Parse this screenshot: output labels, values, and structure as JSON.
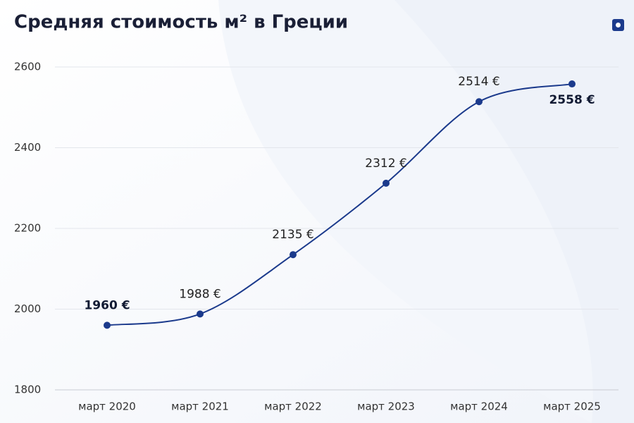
{
  "chart_data": {
    "type": "line",
    "title": "Средняя стоимость м² в Греции",
    "categories": [
      "март 2020",
      "март 2021",
      "март 2022",
      "март 2023",
      "март 2024",
      "март 2025"
    ],
    "values": [
      1960,
      1988,
      2135,
      2312,
      2514,
      2558
    ],
    "value_labels": [
      "1960 €",
      "1988 €",
      "2135 €",
      "2312 €",
      "2514 €",
      "2558 €"
    ],
    "color": "#1b3a8c",
    "ylim": [
      1800,
      2600
    ],
    "yticks": [
      1800,
      2000,
      2200,
      2400,
      2600
    ],
    "grid": true
  }
}
